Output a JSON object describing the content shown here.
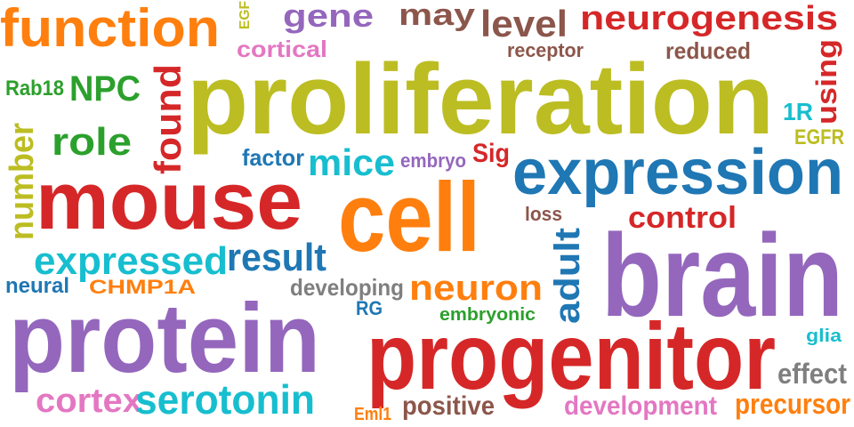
{
  "colors": {
    "orange": "#ff7f0e",
    "purple": "#9467bd",
    "red": "#d62728",
    "blue": "#1f77b4",
    "olive": "#bcbd22",
    "cyan": "#17becf",
    "green": "#2ca02c",
    "pink": "#e377c2",
    "brown": "#8c564b",
    "gray": "#7f7f7f"
  },
  "words": [
    {
      "text": "function",
      "color": "orange",
      "vertical": false
    },
    {
      "text": "gene",
      "color": "purple",
      "vertical": false
    },
    {
      "text": "EGF",
      "color": "olive",
      "vertical": true
    },
    {
      "text": "may",
      "color": "brown",
      "vertical": false
    },
    {
      "text": "level",
      "color": "brown",
      "vertical": false
    },
    {
      "text": "neurogenesis",
      "color": "red",
      "vertical": false
    },
    {
      "text": "cortical",
      "color": "pink",
      "vertical": false
    },
    {
      "text": "receptor",
      "color": "brown",
      "vertical": false
    },
    {
      "text": "reduced",
      "color": "brown",
      "vertical": false
    },
    {
      "text": "using",
      "color": "red",
      "vertical": true
    },
    {
      "text": "Rab18",
      "color": "green",
      "vertical": false
    },
    {
      "text": "NPC",
      "color": "green",
      "vertical": false
    },
    {
      "text": "found",
      "color": "red",
      "vertical": true
    },
    {
      "text": "proliferation",
      "color": "olive",
      "vertical": false
    },
    {
      "text": "1R",
      "color": "cyan",
      "vertical": false
    },
    {
      "text": "role",
      "color": "green",
      "vertical": false
    },
    {
      "text": "EGFR",
      "color": "olive",
      "vertical": false
    },
    {
      "text": "number",
      "color": "olive",
      "vertical": true
    },
    {
      "text": "factor",
      "color": "blue",
      "vertical": false
    },
    {
      "text": "mice",
      "color": "cyan",
      "vertical": false
    },
    {
      "text": "embryo",
      "color": "purple",
      "vertical": false
    },
    {
      "text": "Sig",
      "color": "red",
      "vertical": false
    },
    {
      "text": "expression",
      "color": "blue",
      "vertical": false
    },
    {
      "text": "mouse",
      "color": "red",
      "vertical": false
    },
    {
      "text": "cell",
      "color": "orange",
      "vertical": false
    },
    {
      "text": "loss",
      "color": "brown",
      "vertical": false
    },
    {
      "text": "control",
      "color": "red",
      "vertical": false
    },
    {
      "text": "adult",
      "color": "blue",
      "vertical": true
    },
    {
      "text": "brain",
      "color": "purple",
      "vertical": false
    },
    {
      "text": "expressed",
      "color": "cyan",
      "vertical": false
    },
    {
      "text": "result",
      "color": "blue",
      "vertical": false
    },
    {
      "text": "neural",
      "color": "blue",
      "vertical": false
    },
    {
      "text": "CHMP1A",
      "color": "orange",
      "vertical": false
    },
    {
      "text": "developing",
      "color": "gray",
      "vertical": false
    },
    {
      "text": "neuron",
      "color": "orange",
      "vertical": false
    },
    {
      "text": "RG",
      "color": "blue",
      "vertical": false
    },
    {
      "text": "embryonic",
      "color": "green",
      "vertical": false
    },
    {
      "text": "protein",
      "color": "purple",
      "vertical": false
    },
    {
      "text": "progenitor",
      "color": "red",
      "vertical": false
    },
    {
      "text": "glia",
      "color": "cyan",
      "vertical": false
    },
    {
      "text": "effect",
      "color": "gray",
      "vertical": false
    },
    {
      "text": "cortex",
      "color": "pink",
      "vertical": false
    },
    {
      "text": "serotonin",
      "color": "cyan",
      "vertical": false
    },
    {
      "text": "Eml1",
      "color": "orange",
      "vertical": false
    },
    {
      "text": "positive",
      "color": "brown",
      "vertical": false
    },
    {
      "text": "development",
      "color": "pink",
      "vertical": false
    },
    {
      "text": "precursor",
      "color": "orange",
      "vertical": false
    }
  ]
}
